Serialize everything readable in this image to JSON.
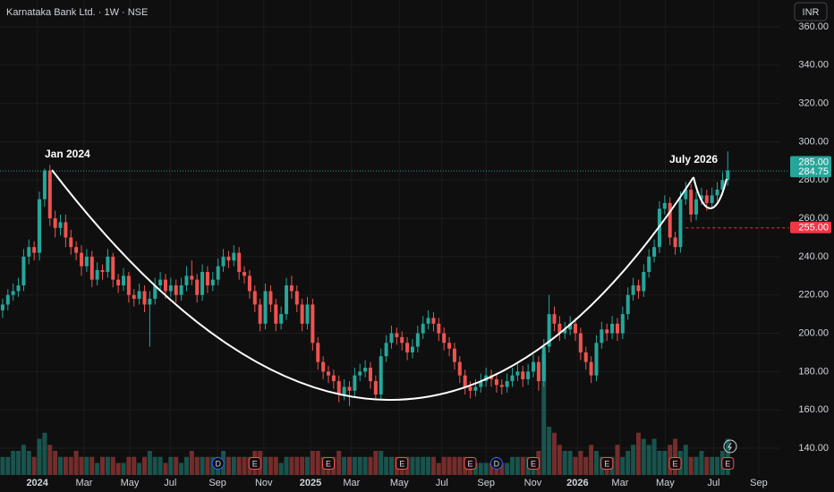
{
  "chart_data": {
    "type": "candlestick",
    "title": "Karnataka Bank Ltd. · 1W · NSE",
    "currency": "INR",
    "up_color": "#26a69a",
    "down_color": "#ef5350",
    "xlim": [
      -0.5,
      148
    ],
    "ylim": [
      126,
      374
    ],
    "yticks": [
      {
        "value": 140,
        "label": "140.00"
      },
      {
        "value": 160,
        "label": "160.00"
      },
      {
        "value": 180,
        "label": "180.00"
      },
      {
        "value": 200,
        "label": "200.00"
      },
      {
        "value": 220,
        "label": "220.00"
      },
      {
        "value": 240,
        "label": "240.00"
      },
      {
        "value": 260,
        "label": "260.00"
      },
      {
        "value": 280,
        "label": "280.00"
      },
      {
        "value": 300,
        "label": "300.00"
      },
      {
        "value": 320,
        "label": "320.00"
      },
      {
        "value": 340,
        "label": "340.00"
      },
      {
        "value": 360,
        "label": "360.00"
      }
    ],
    "xticks": [
      {
        "value": 6.6,
        "label": "2024"
      },
      {
        "value": 15.5,
        "label": "Mar"
      },
      {
        "value": 24.2,
        "label": "May"
      },
      {
        "value": 31.9,
        "label": "Jul"
      },
      {
        "value": 40.9,
        "label": "Sep"
      },
      {
        "value": 49.7,
        "label": "Nov"
      },
      {
        "value": 58.6,
        "label": "2025"
      },
      {
        "value": 66.4,
        "label": "Mar"
      },
      {
        "value": 75.5,
        "label": "May"
      },
      {
        "value": 83.6,
        "label": "Jul"
      },
      {
        "value": 92,
        "label": "Sep"
      },
      {
        "value": 100.9,
        "label": "Nov"
      },
      {
        "value": 109.4,
        "label": "2026"
      },
      {
        "value": 117.5,
        "label": "Mar"
      },
      {
        "value": 126.1,
        "label": "May"
      },
      {
        "value": 135.3,
        "label": "Jul"
      },
      {
        "value": 143.9,
        "label": "Sep"
      }
    ],
    "candles": [
      [
        212,
        218,
        208,
        215
      ],
      [
        215,
        223,
        212,
        220
      ],
      [
        220,
        226,
        217,
        222
      ],
      [
        222,
        229,
        219,
        225
      ],
      [
        225,
        244,
        222,
        240
      ],
      [
        240,
        249,
        236,
        245
      ],
      [
        245,
        248,
        238,
        242
      ],
      [
        242,
        274,
        238,
        270
      ],
      [
        270,
        286,
        266,
        285
      ],
      [
        285,
        288,
        256,
        260
      ],
      [
        260,
        264,
        250,
        255
      ],
      [
        255,
        262,
        251,
        258
      ],
      [
        258,
        262,
        245,
        250
      ],
      [
        250,
        254,
        241,
        245
      ],
      [
        245,
        248,
        238,
        242
      ],
      [
        242,
        246,
        230,
        235
      ],
      [
        235,
        244,
        232,
        240
      ],
      [
        240,
        243,
        224,
        228
      ],
      [
        228,
        237,
        225,
        233
      ],
      [
        233,
        236,
        228,
        232
      ],
      [
        232,
        244,
        229,
        240
      ],
      [
        240,
        242,
        224,
        228
      ],
      [
        228,
        231,
        221,
        225
      ],
      [
        225,
        234,
        222,
        230
      ],
      [
        230,
        232,
        216,
        220
      ],
      [
        220,
        223,
        214,
        218
      ],
      [
        218,
        226,
        215,
        222
      ],
      [
        222,
        225,
        211,
        215
      ],
      [
        215,
        222,
        193,
        218
      ],
      [
        218,
        229,
        215,
        225
      ],
      [
        225,
        232,
        222,
        228
      ],
      [
        228,
        231,
        218,
        222
      ],
      [
        222,
        229,
        219,
        225
      ],
      [
        225,
        228,
        216,
        220
      ],
      [
        220,
        229,
        217,
        225
      ],
      [
        225,
        235,
        222,
        230
      ],
      [
        230,
        238,
        225,
        228
      ],
      [
        228,
        231,
        216,
        220
      ],
      [
        220,
        236,
        217,
        232
      ],
      [
        232,
        235,
        221,
        225
      ],
      [
        225,
        232,
        222,
        228
      ],
      [
        228,
        239,
        225,
        235
      ],
      [
        235,
        244,
        232,
        240
      ],
      [
        240,
        243,
        234,
        238
      ],
      [
        238,
        246,
        235,
        242
      ],
      [
        242,
        245,
        228,
        232
      ],
      [
        232,
        235,
        226,
        230
      ],
      [
        230,
        233,
        218,
        222
      ],
      [
        222,
        225,
        211,
        215
      ],
      [
        215,
        218,
        201,
        205
      ],
      [
        205,
        226,
        202,
        222
      ],
      [
        222,
        225,
        211,
        215
      ],
      [
        215,
        218,
        201,
        205
      ],
      [
        205,
        214,
        202,
        210
      ],
      [
        210,
        229,
        207,
        225
      ],
      [
        225,
        230,
        218,
        222
      ],
      [
        222,
        225,
        211,
        215
      ],
      [
        215,
        218,
        201,
        205
      ],
      [
        205,
        219,
        202,
        215
      ],
      [
        215,
        218,
        191,
        195
      ],
      [
        195,
        198,
        181,
        185
      ],
      [
        185,
        188,
        176,
        180
      ],
      [
        180,
        183,
        174,
        178
      ],
      [
        178,
        181,
        171,
        175
      ],
      [
        175,
        178,
        164,
        168
      ],
      [
        168,
        176,
        165,
        172
      ],
      [
        172,
        175,
        162,
        170
      ],
      [
        170,
        182,
        167,
        178
      ],
      [
        178,
        184,
        175,
        180
      ],
      [
        180,
        186,
        177,
        182
      ],
      [
        182,
        185,
        171,
        175
      ],
      [
        175,
        178,
        166,
        168
      ],
      [
        168,
        192,
        165,
        188
      ],
      [
        188,
        199,
        185,
        195
      ],
      [
        195,
        204,
        192,
        200
      ],
      [
        200,
        203,
        194,
        198
      ],
      [
        198,
        201,
        191,
        195
      ],
      [
        195,
        198,
        186,
        190
      ],
      [
        190,
        197,
        187,
        193
      ],
      [
        193,
        204,
        190,
        200
      ],
      [
        200,
        209,
        197,
        205
      ],
      [
        205,
        212,
        202,
        208
      ],
      [
        208,
        211,
        201,
        205
      ],
      [
        205,
        208,
        196,
        200
      ],
      [
        200,
        203,
        191,
        195
      ],
      [
        195,
        198,
        188,
        192
      ],
      [
        192,
        195,
        181,
        185
      ],
      [
        185,
        188,
        174,
        178
      ],
      [
        178,
        181,
        168,
        172
      ],
      [
        172,
        175,
        166,
        170
      ],
      [
        170,
        176,
        167,
        172
      ],
      [
        172,
        179,
        169,
        175
      ],
      [
        175,
        182,
        172,
        178
      ],
      [
        178,
        181,
        172,
        176
      ],
      [
        176,
        179,
        169,
        173
      ],
      [
        173,
        176,
        168,
        172
      ],
      [
        172,
        179,
        169,
        175
      ],
      [
        175,
        182,
        172,
        178
      ],
      [
        178,
        184,
        175,
        180
      ],
      [
        180,
        183,
        172,
        176
      ],
      [
        176,
        184,
        173,
        180
      ],
      [
        180,
        189,
        177,
        185
      ],
      [
        185,
        188,
        170,
        175
      ],
      [
        175,
        197,
        172,
        193
      ],
      [
        193,
        220,
        190,
        210
      ],
      [
        210,
        214,
        201,
        205
      ],
      [
        205,
        209,
        196,
        200
      ],
      [
        200,
        206,
        197,
        202
      ],
      [
        202,
        209,
        199,
        205
      ],
      [
        205,
        208,
        196,
        200
      ],
      [
        200,
        203,
        186,
        190
      ],
      [
        190,
        193,
        181,
        185
      ],
      [
        185,
        188,
        174,
        178
      ],
      [
        178,
        199,
        175,
        195
      ],
      [
        195,
        206,
        192,
        202
      ],
      [
        202,
        205,
        196,
        200
      ],
      [
        200,
        209,
        197,
        205
      ],
      [
        205,
        208,
        196,
        200
      ],
      [
        200,
        214,
        197,
        210
      ],
      [
        210,
        224,
        207,
        220
      ],
      [
        220,
        229,
        217,
        225
      ],
      [
        225,
        228,
        218,
        222
      ],
      [
        222,
        236,
        219,
        232
      ],
      [
        232,
        244,
        229,
        240
      ],
      [
        240,
        249,
        237,
        245
      ],
      [
        245,
        269,
        242,
        265
      ],
      [
        265,
        272,
        262,
        268
      ],
      [
        268,
        271,
        246,
        250
      ],
      [
        250,
        253,
        241,
        245
      ],
      [
        245,
        274,
        242,
        270
      ],
      [
        270,
        279,
        267,
        275
      ],
      [
        275,
        278,
        258,
        262
      ],
      [
        262,
        274,
        259,
        270
      ],
      [
        270,
        276,
        267,
        272
      ],
      [
        272,
        275,
        264,
        268
      ],
      [
        268,
        276,
        265,
        272
      ],
      [
        272,
        279,
        269,
        275
      ],
      [
        275,
        284,
        272,
        280
      ],
      [
        280,
        295,
        277,
        285
      ]
    ],
    "volume": [
      3,
      3,
      4,
      4,
      5,
      4,
      3,
      6,
      7,
      5,
      4,
      3,
      3,
      3,
      4,
      3,
      3,
      3,
      2,
      3,
      3,
      3,
      2,
      2,
      3,
      3,
      2,
      3,
      4,
      3,
      3,
      2,
      3,
      3,
      2,
      3,
      4,
      3,
      3,
      3,
      3,
      3,
      4,
      3,
      3,
      3,
      3,
      3,
      4,
      4,
      3,
      3,
      3,
      2,
      3,
      3,
      3,
      3,
      3,
      4,
      4,
      3,
      3,
      3,
      4,
      3,
      3,
      3,
      3,
      3,
      3,
      4,
      4,
      3,
      3,
      3,
      3,
      3,
      3,
      3,
      3,
      3,
      3,
      2,
      3,
      3,
      3,
      3,
      3,
      3,
      2,
      2,
      2,
      2,
      3,
      2,
      2,
      3,
      3,
      3,
      3,
      3,
      4,
      20,
      8,
      7,
      5,
      4,
      4,
      3,
      4,
      3,
      5,
      4,
      3,
      3,
      3,
      5,
      3,
      4,
      5,
      7,
      6,
      5,
      6,
      4,
      4,
      5,
      6,
      4,
      5,
      3,
      3,
      4,
      3,
      3,
      3,
      4,
      6
    ],
    "last_price": {
      "value": 285,
      "label": "285.00"
    },
    "price_lines": [
      {
        "value": 284.75,
        "label": "284.75",
        "color": "#26a69a"
      },
      {
        "value": 255,
        "label": "255.00",
        "color": "#f23645"
      }
    ],
    "annotations": [
      {
        "text": "Jan 2024"
      },
      {
        "text": "July 2026"
      }
    ],
    "events": [
      {
        "week": 41,
        "label": "D"
      },
      {
        "week": 48,
        "label": "E"
      },
      {
        "week": 62,
        "label": "E"
      },
      {
        "week": 76,
        "label": "E"
      },
      {
        "week": 89,
        "label": "E"
      },
      {
        "week": 94,
        "label": "D"
      },
      {
        "week": 101,
        "label": "E"
      },
      {
        "week": 115,
        "label": "E"
      },
      {
        "week": 128,
        "label": "E"
      },
      {
        "week": 138,
        "label": "E"
      }
    ]
  }
}
